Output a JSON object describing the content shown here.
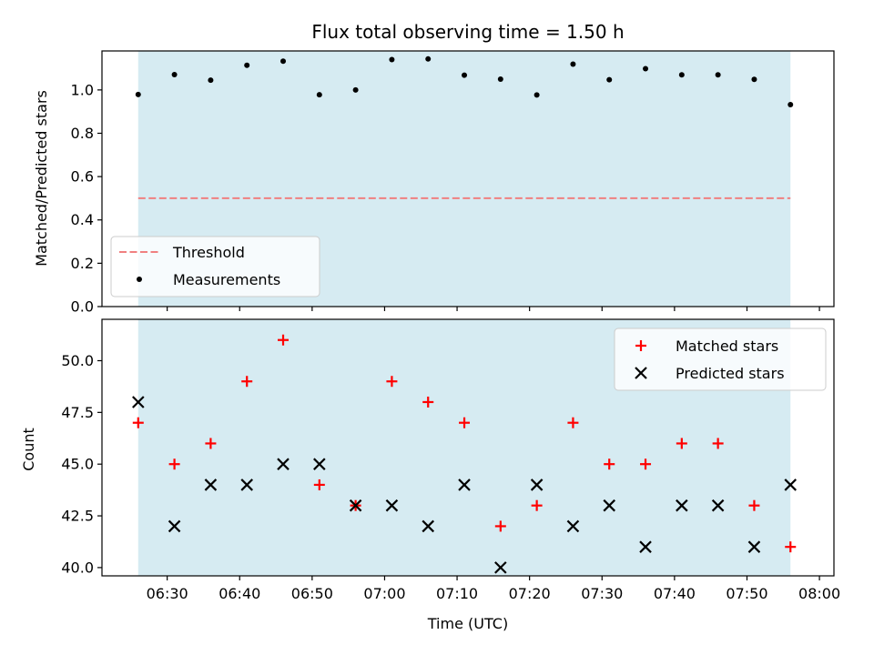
{
  "chart_data": [
    {
      "type": "scatter",
      "title": "Flux total observing time = 1.50 h",
      "xlabel": "",
      "ylabel": "Matched/Predicted stars",
      "ylim": [
        0.0,
        1.18
      ],
      "yticks": [
        "0.0",
        "0.2",
        "0.4",
        "0.6",
        "0.8",
        "1.0"
      ],
      "shaded_span": [
        "06:26",
        "07:56"
      ],
      "shade_color": "#add8e6",
      "legend_placement": "lower-left",
      "threshold": {
        "name": "Threshold",
        "value": 0.5,
        "color": "#f08080",
        "style": "dashed"
      },
      "series": [
        {
          "name": "Measurements",
          "marker": "dot",
          "color": "#000000",
          "x": [
            "06:26",
            "06:31",
            "06:36",
            "06:41",
            "06:46",
            "06:51",
            "06:56",
            "07:01",
            "07:06",
            "07:11",
            "07:16",
            "07:21",
            "07:26",
            "07:31",
            "07:36",
            "07:41",
            "07:46",
            "07:51",
            "07:56"
          ],
          "y": [
            0.979,
            1.071,
            1.045,
            1.114,
            1.133,
            0.978,
            1.0,
            1.14,
            1.143,
            1.068,
            1.05,
            0.977,
            1.119,
            1.047,
            1.098,
            1.07,
            1.07,
            1.049,
            0.932
          ]
        }
      ]
    },
    {
      "type": "scatter",
      "title": "",
      "xlabel": "Time (UTC)",
      "ylabel": "Count",
      "ylim": [
        39.6,
        52.0
      ],
      "yticks": [
        "40.0",
        "42.5",
        "45.0",
        "47.5",
        "50.0"
      ],
      "xticks": [
        "06:30",
        "06:40",
        "06:50",
        "07:00",
        "07:10",
        "07:20",
        "07:30",
        "07:40",
        "07:50",
        "08:00"
      ],
      "xlim": [
        "06:21",
        "08:02"
      ],
      "shaded_span": [
        "06:26",
        "07:56"
      ],
      "shade_color": "#add8e6",
      "legend_placement": "upper-right",
      "series": [
        {
          "name": "Matched stars",
          "marker": "plus",
          "color": "#ff0000",
          "x": [
            "06:26",
            "06:31",
            "06:36",
            "06:41",
            "06:46",
            "06:51",
            "06:56",
            "07:01",
            "07:06",
            "07:11",
            "07:16",
            "07:21",
            "07:26",
            "07:31",
            "07:36",
            "07:41",
            "07:46",
            "07:51",
            "07:56"
          ],
          "y": [
            47,
            45,
            46,
            49,
            51,
            44,
            43,
            49,
            48,
            47,
            42,
            43,
            47,
            45,
            45,
            46,
            46,
            43,
            41
          ]
        },
        {
          "name": "Predicted stars",
          "marker": "x",
          "color": "#000000",
          "x": [
            "06:26",
            "06:31",
            "06:36",
            "06:41",
            "06:46",
            "06:51",
            "06:56",
            "07:01",
            "07:06",
            "07:11",
            "07:16",
            "07:21",
            "07:26",
            "07:31",
            "07:36",
            "07:41",
            "07:46",
            "07:51",
            "07:56"
          ],
          "y": [
            48,
            42,
            44,
            44,
            45,
            45,
            43,
            43,
            42,
            44,
            40,
            44,
            42,
            43,
            41,
            43,
            43,
            41,
            44
          ]
        }
      ]
    }
  ]
}
